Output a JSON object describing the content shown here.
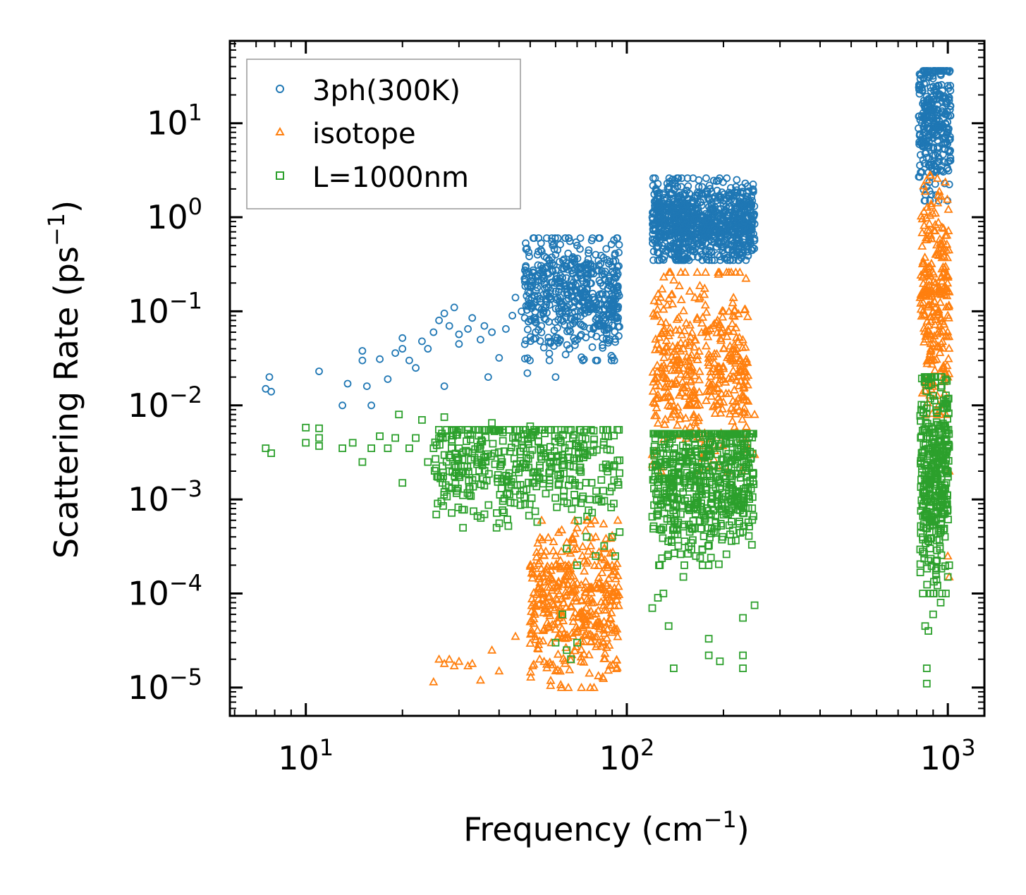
{
  "chart_data": {
    "type": "scatter",
    "xscale": "log",
    "yscale": "log",
    "xlim": [
      5.8,
      1300
    ],
    "ylim": [
      5e-06,
      75
    ],
    "xlabel": {
      "main": "Frequency (cm",
      "sup": "−1",
      "tail": ")"
    },
    "ylabel": {
      "main": "Scattering Rate (ps",
      "sup": "−1",
      "tail": ")"
    },
    "xticks": [
      {
        "value": 10,
        "base": "10",
        "exp": "1"
      },
      {
        "value": 100,
        "base": "10",
        "exp": "2"
      },
      {
        "value": 1000,
        "base": "10",
        "exp": "3"
      }
    ],
    "yticks": [
      {
        "value": 10,
        "base": "10",
        "exp": "1"
      },
      {
        "value": 1,
        "base": "10",
        "exp": "0"
      },
      {
        "value": 0.1,
        "base": "10",
        "exp": "−1"
      },
      {
        "value": 0.01,
        "base": "10",
        "exp": "−2"
      },
      {
        "value": 0.001,
        "base": "10",
        "exp": "−3"
      },
      {
        "value": 0.0001,
        "base": "10",
        "exp": "−4"
      },
      {
        "value": 1e-05,
        "base": "10",
        "exp": "−5"
      }
    ],
    "legend": {
      "placement": "top-left",
      "entries": [
        {
          "label": "3ph(300K)",
          "marker": "circle",
          "color": "#1f77b4"
        },
        {
          "label": "isotope",
          "marker": "triangle",
          "color": "#ff7f0e"
        },
        {
          "label": "L=1000nm",
          "marker": "square",
          "color": "#2ca02c"
        }
      ]
    },
    "series": [
      {
        "name": "3ph(300K)",
        "marker": "circle",
        "color": "#1f77b4",
        "points": [
          [
            7.5,
            0.015
          ],
          [
            7.7,
            0.02
          ],
          [
            7.8,
            0.014
          ],
          [
            11,
            0.023
          ],
          [
            13,
            0.01
          ],
          [
            13.5,
            0.017
          ],
          [
            15,
            0.038
          ],
          [
            15,
            0.03
          ],
          [
            15.5,
            0.016
          ],
          [
            16,
            0.01
          ],
          [
            17,
            0.031
          ],
          [
            18,
            0.019
          ],
          [
            19,
            0.036
          ],
          [
            20,
            0.04
          ],
          [
            20,
            0.052
          ],
          [
            21,
            0.03
          ],
          [
            22,
            0.025
          ],
          [
            23,
            0.048
          ],
          [
            24,
            0.04
          ],
          [
            25,
            0.06
          ],
          [
            26,
            0.08
          ],
          [
            27,
            0.095
          ],
          [
            27,
            0.016
          ],
          [
            28,
            0.07
          ],
          [
            29,
            0.11
          ],
          [
            30,
            0.057
          ],
          [
            30,
            0.045
          ],
          [
            32,
            0.065
          ],
          [
            33,
            0.085
          ],
          [
            35,
            0.05
          ],
          [
            36,
            0.07
          ],
          [
            37,
            0.02
          ],
          [
            38,
            0.06
          ],
          [
            40,
            0.032
          ],
          [
            42,
            0.065
          ],
          [
            44,
            0.09
          ],
          [
            45,
            0.14
          ],
          [
            47,
            0.1
          ],
          [
            49,
            0.022
          ],
          [
            50,
            0.18
          ],
          [
            52,
            0.06
          ],
          [
            55,
            0.15
          ],
          [
            57,
            0.25
          ],
          [
            60,
            0.4
          ],
          [
            60,
            0.02
          ],
          [
            62,
            0.05
          ],
          [
            65,
            0.3
          ],
          [
            70,
            0.5
          ],
          [
            75,
            0.2
          ],
          [
            80,
            0.4
          ],
          [
            85,
            0.25
          ],
          [
            90,
            0.3
          ],
          [
            92,
            0.15
          ],
          [
            120,
            1.0
          ],
          [
            125,
            0.35
          ],
          [
            130,
            1.8
          ],
          [
            140,
            0.7
          ],
          [
            150,
            1.2
          ],
          [
            160,
            1.5
          ],
          [
            170,
            0.6
          ],
          [
            180,
            0.4
          ],
          [
            190,
            0.9
          ],
          [
            200,
            1.4
          ],
          [
            210,
            0.35
          ],
          [
            220,
            2.5
          ],
          [
            230,
            1.8
          ],
          [
            240,
            1.5
          ],
          [
            250,
            0.85
          ],
          [
            830,
            10
          ],
          [
            840,
            8
          ],
          [
            850,
            1.5
          ],
          [
            860,
            12
          ],
          [
            870,
            3
          ],
          [
            880,
            15
          ],
          [
            900,
            8
          ],
          [
            920,
            3
          ],
          [
            950,
            20
          ],
          [
            980,
            6
          ],
          [
            1000,
            25
          ],
          [
            1010,
            35
          ],
          [
            1020,
            12
          ]
        ],
        "clusters": [
          [
            48,
            95,
            0.03,
            0.6,
            0.15,
            550
          ],
          [
            120,
            250,
            0.35,
            2.6,
            0.9,
            900
          ],
          [
            810,
            1020,
            1.5,
            36,
            10,
            320
          ]
        ]
      },
      {
        "name": "isotope",
        "marker": "triangle",
        "color": "#ff7f0e",
        "points": [
          [
            25,
            1.15e-05
          ],
          [
            26,
            2e-05
          ],
          [
            27,
            1.8e-05
          ],
          [
            28,
            2e-05
          ],
          [
            29,
            1.7e-05
          ],
          [
            30,
            1.9e-05
          ],
          [
            32,
            1.7e-05
          ],
          [
            33,
            1.8e-05
          ],
          [
            35,
            1.2e-05
          ],
          [
            38,
            2.5e-05
          ],
          [
            40,
            1.5e-05
          ],
          [
            45,
            3.5e-05
          ],
          [
            50,
            5e-05
          ],
          [
            55,
            0.00015
          ],
          [
            60,
            0.0002
          ],
          [
            65,
            0.00035
          ],
          [
            70,
            0.0005
          ],
          [
            75,
            0.0006
          ],
          [
            80,
            0.0004
          ],
          [
            85,
            0.0003
          ],
          [
            90,
            0.0002
          ],
          [
            120,
            0.003
          ],
          [
            130,
            0.02
          ],
          [
            140,
            0.03
          ],
          [
            150,
            0.04
          ],
          [
            160,
            0.025
          ],
          [
            180,
            0.035
          ],
          [
            200,
            0.1
          ],
          [
            215,
            0.14
          ],
          [
            225,
            0.26
          ],
          [
            235,
            0.02
          ],
          [
            250,
            0.008
          ],
          [
            250,
            0.003
          ],
          [
            850,
            0.15
          ],
          [
            860,
            2.5
          ],
          [
            870,
            0.6
          ],
          [
            880,
            0.3
          ],
          [
            900,
            0.1
          ],
          [
            950,
            0.06
          ],
          [
            1000,
            0.02
          ],
          [
            1010,
            0.002
          ],
          [
            1000,
            0.00025
          ],
          [
            1010,
            0.00015
          ]
        ],
        "clusters": [
          [
            50,
            95,
            1e-05,
            0.0006,
            8e-05,
            420
          ],
          [
            120,
            240,
            0.002,
            0.26,
            0.025,
            420
          ],
          [
            820,
            1010,
            0.008,
            2.8,
            0.15,
            260
          ]
        ]
      },
      {
        "name": "L=1000nm",
        "marker": "square",
        "color": "#2ca02c",
        "points": [
          [
            7.5,
            0.0035
          ],
          [
            7.8,
            0.0031
          ],
          [
            10,
            0.0058
          ],
          [
            10,
            0.004
          ],
          [
            11,
            0.0057
          ],
          [
            11,
            0.0045
          ],
          [
            11,
            0.0037
          ],
          [
            13,
            0.0035
          ],
          [
            14,
            0.004
          ],
          [
            15,
            0.0025
          ],
          [
            16,
            0.0035
          ],
          [
            17,
            0.0047
          ],
          [
            18,
            0.0035
          ],
          [
            19,
            0.0045
          ],
          [
            19.5,
            0.008
          ],
          [
            20,
            0.0015
          ],
          [
            21,
            0.0035
          ],
          [
            22,
            0.0045
          ],
          [
            23,
            0.007
          ],
          [
            24,
            0.0025
          ],
          [
            25,
            0.0035
          ],
          [
            26,
            0.0045
          ],
          [
            27,
            0.0075
          ],
          [
            27,
            0.0012
          ],
          [
            28,
            0.002
          ],
          [
            30,
            0.0035
          ],
          [
            32,
            0.005
          ],
          [
            35,
            0.0038
          ],
          [
            38,
            0.0065
          ],
          [
            40,
            0.0055
          ],
          [
            45,
            0.004
          ],
          [
            50,
            0.006
          ],
          [
            55,
            0.0035
          ],
          [
            65,
            0.0003
          ],
          [
            70,
            0.0002
          ],
          [
            75,
            0.0004
          ],
          [
            80,
            0.00025
          ],
          [
            85,
            0.00032
          ],
          [
            90,
            0.0004
          ],
          [
            95,
            0.00045
          ],
          [
            92,
            0.00025
          ],
          [
            60,
            3e-05
          ],
          [
            63,
            6e-05
          ],
          [
            65,
            2.5e-05
          ],
          [
            67,
            2e-05
          ],
          [
            70,
            3e-05
          ],
          [
            120,
            7e-05
          ],
          [
            125,
            9e-05
          ],
          [
            130,
            0.0001
          ],
          [
            135,
            4.5e-05
          ],
          [
            140,
            1.6e-05
          ],
          [
            150,
            0.00015
          ],
          [
            180,
            3.3e-05
          ],
          [
            180,
            2.2e-05
          ],
          [
            195,
            1.9e-05
          ],
          [
            230,
            2.2e-05
          ],
          [
            230,
            1.6e-05
          ],
          [
            230,
            5.5e-05
          ],
          [
            250,
            7.5e-05
          ],
          [
            850,
            4.5e-05
          ],
          [
            860,
            1.6e-05
          ],
          [
            860,
            1.1e-05
          ],
          [
            870,
            4e-05
          ],
          [
            900,
            6e-05
          ],
          [
            950,
            8e-05
          ],
          [
            1000,
            0.00015
          ],
          [
            1010,
            0.0002
          ]
        ],
        "clusters": [
          [
            25,
            95,
            0.0005,
            0.0055,
            0.0025,
            420
          ],
          [
            120,
            250,
            0.0002,
            0.005,
            0.0018,
            600
          ],
          [
            820,
            1010,
            0.0001,
            0.02,
            0.002,
            360
          ]
        ]
      }
    ]
  }
}
